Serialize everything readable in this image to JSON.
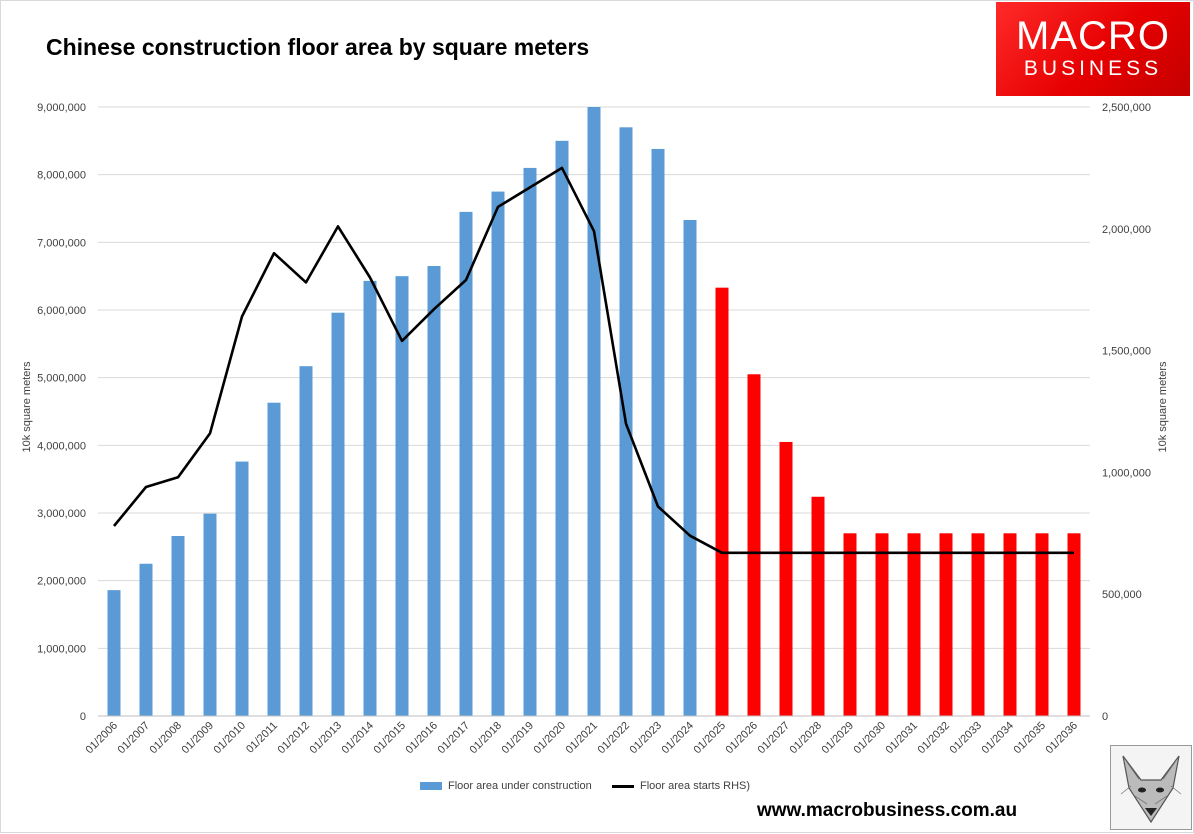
{
  "title": "Chinese construction floor area by square meters",
  "logo": {
    "line1": "MACRO",
    "line2": "BUSINESS"
  },
  "website": "www.macrobusiness.com.au",
  "fox_icon": "fox-head-icon",
  "colors": {
    "bar_actual": "#5b9bd5",
    "bar_forecast": "#ff0000",
    "line": "#000000",
    "grid": "#d9d9d9"
  },
  "chart_data": {
    "type": "bar",
    "title": "Chinese construction floor area by square meters",
    "xlabel": "",
    "ylabel": "10k square meters",
    "y2label": "10k square meters",
    "ylim": [
      0,
      9000000
    ],
    "y2lim": [
      0,
      2500000
    ],
    "y_ticks": [
      "0",
      "1,000,000",
      "2,000,000",
      "3,000,000",
      "4,000,000",
      "5,000,000",
      "6,000,000",
      "7,000,000",
      "8,000,000",
      "9,000,000"
    ],
    "y2_ticks": [
      "0",
      "500,000",
      "1,000,000",
      "1,500,000",
      "2,000,000",
      "2,500,000"
    ],
    "categories": [
      "01/2006",
      "01/2007",
      "01/2008",
      "01/2009",
      "01/2010",
      "01/2011",
      "01/2012",
      "01/2013",
      "01/2014",
      "01/2015",
      "01/2016",
      "01/2017",
      "01/2018",
      "01/2019",
      "01/2020",
      "01/2021",
      "01/2022",
      "01/2023",
      "01/2024",
      "01/2025",
      "01/2026",
      "01/2027",
      "01/2028",
      "01/2029",
      "01/2030",
      "01/2031",
      "01/2032",
      "01/2033",
      "01/2034",
      "01/2035",
      "01/2036"
    ],
    "forecast_from": "01/2025",
    "grid": true,
    "legend_position": "bottom",
    "series": [
      {
        "name": "Floor area under construction",
        "type": "bar",
        "axis": "left",
        "values": [
          1860000,
          2250000,
          2660000,
          2990000,
          3760000,
          4630000,
          5170000,
          5960000,
          6430000,
          6500000,
          6650000,
          7450000,
          7750000,
          8100000,
          8500000,
          9000000,
          8700000,
          8380000,
          7330000,
          6330000,
          5050000,
          4050000,
          3240000,
          2700000,
          2700000,
          2700000,
          2700000,
          2700000,
          2700000,
          2700000,
          2700000
        ]
      },
      {
        "name": "Floor area starts RHS)",
        "type": "line",
        "axis": "right",
        "values": [
          780000,
          940000,
          980000,
          1160000,
          1640000,
          1900000,
          1780000,
          2010000,
          1800000,
          1540000,
          1670000,
          1790000,
          2090000,
          2170000,
          2250000,
          1990000,
          1200000,
          860000,
          740000,
          670000,
          670000,
          670000,
          670000,
          670000,
          670000,
          670000,
          670000,
          670000,
          670000,
          670000,
          670000
        ]
      }
    ]
  }
}
